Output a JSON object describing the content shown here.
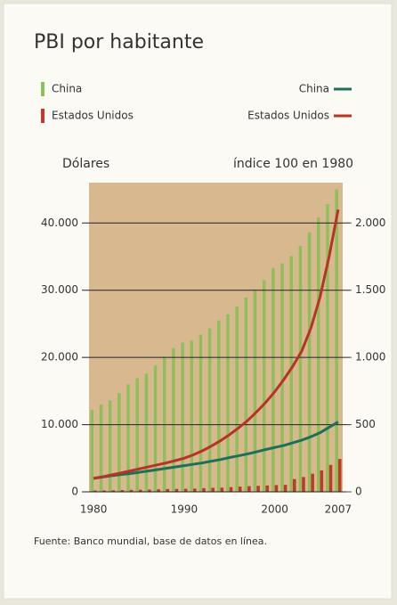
{
  "chart_data": {
    "type": "bar",
    "title": "PBI por habitante",
    "y_label": "Dólares",
    "y2_label": "índice 100 en 1980",
    "source": "Fuente: Banco mundial, base de datos en línea.",
    "categories": [
      "1980",
      null,
      null,
      null,
      null,
      null,
      null,
      null,
      null,
      null,
      "1990",
      null,
      null,
      null,
      null,
      null,
      null,
      null,
      null,
      null,
      "2000",
      null,
      null,
      null,
      null,
      null,
      null,
      "2007"
    ],
    "ylim": [
      0,
      46000
    ],
    "yticks": [
      0,
      {
        "value": 10000,
        "label": "10.000"
      },
      {
        "value": 20000,
        "label": "20.000"
      },
      {
        "value": 30000,
        "label": "30.000"
      },
      {
        "value": 40000,
        "label": "40.000"
      }
    ],
    "y2lim": [
      0,
      2300
    ],
    "y2ticks": [
      0,
      500,
      {
        "value": 1000,
        "label": "1.000"
      },
      {
        "value": 1500,
        "label": "1.500"
      },
      {
        "value": 2000,
        "label": "2.000"
      }
    ],
    "grid": true,
    "series": [
      {
        "name": "China",
        "type": "bar",
        "color": "#8fbf5a",
        "values": [
          12200,
          13000,
          13600,
          14700,
          16000,
          16900,
          17600,
          18800,
          20100,
          21400,
          22200,
          22500,
          23400,
          24300,
          25500,
          26400,
          27600,
          28900,
          30100,
          31500,
          33300,
          34000,
          35100,
          36600,
          38600,
          40800,
          42800,
          45000
        ]
      },
      {
        "name": "Estados Unidos",
        "type": "bar",
        "color": "#c0392b",
        "values": [
          200,
          210,
          230,
          260,
          300,
          320,
          340,
          380,
          420,
          430,
          450,
          480,
          550,
          600,
          620,
          700,
          780,
          850,
          900,
          950,
          1000,
          1050,
          1900,
          2200,
          2700,
          3200,
          4000,
          4900
        ]
      },
      {
        "name": "China",
        "type": "line",
        "axis": "y2",
        "color": "#1f6e5a",
        "values": [
          100,
          110,
          120,
          128,
          136,
          145,
          155,
          165,
          175,
          185,
          195,
          205,
          215,
          228,
          240,
          255,
          268,
          282,
          298,
          315,
          330,
          345,
          365,
          385,
          410,
          440,
          480,
          520
        ]
      },
      {
        "name": "Estados Unidos",
        "type": "line",
        "axis": "y2",
        "color": "#b83227",
        "values": [
          100,
          112,
          126,
          140,
          155,
          170,
          185,
          200,
          215,
          232,
          250,
          275,
          305,
          340,
          380,
          425,
          475,
          530,
          595,
          665,
          745,
          835,
          935,
          1050,
          1220,
          1450,
          1750,
          2100
        ]
      }
    ]
  }
}
